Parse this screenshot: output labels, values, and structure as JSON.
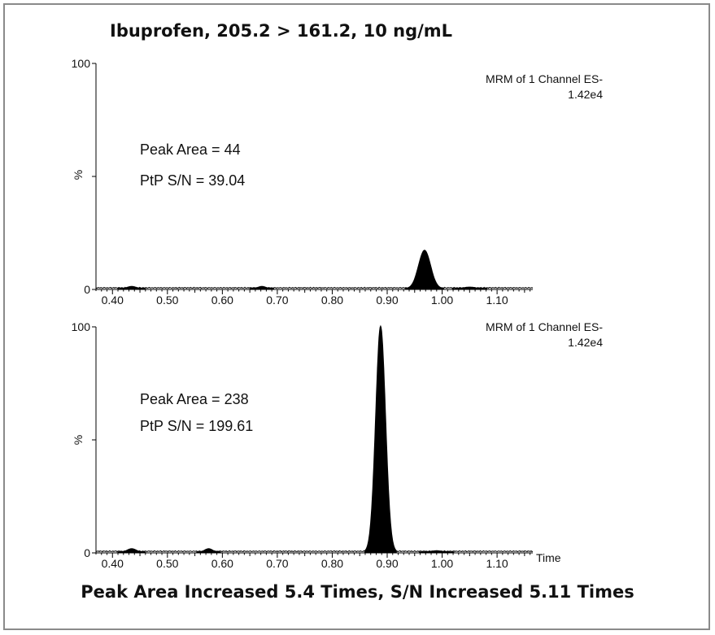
{
  "title": "Ibuprofen, 205.2 > 161.2, 10 ng/mL",
  "footer": "Peak Area Increased 5.4 Times, S/N Increased 5.11 Times",
  "colors": {
    "trace": "#000000",
    "frame": "#8a8a8a",
    "background": "#ffffff"
  },
  "chart_data": [
    {
      "type": "line",
      "title": "Ibuprofen, 205.2 > 161.2, 10 ng/mL",
      "xlabel": "",
      "ylabel": "%",
      "xlim": [
        0.37,
        1.165
      ],
      "ylim": [
        0,
        100
      ],
      "x_ticks": [
        "0.40",
        "0.50",
        "0.60",
        "0.70",
        "0.80",
        "0.90",
        "1.00",
        "1.10"
      ],
      "y_ticks": [
        "0",
        "100"
      ],
      "channel": "MRM of 1 Channel ES-",
      "intensity": "1.42e4",
      "annotations": [
        "Peak Area = 44",
        "PtP S/N = 39.04"
      ],
      "peaks": [
        {
          "rt": 0.968,
          "height": 17,
          "width": 0.011
        },
        {
          "rt": 0.435,
          "height": 1,
          "width": 0.008
        },
        {
          "rt": 0.672,
          "height": 1,
          "width": 0.007
        },
        {
          "rt": 1.05,
          "height": 0.7,
          "width": 0.01
        }
      ],
      "grid": false,
      "legend": "none"
    },
    {
      "type": "line",
      "title": "",
      "xlabel": "Time",
      "ylabel": "%",
      "xlim": [
        0.37,
        1.165
      ],
      "ylim": [
        0,
        100
      ],
      "x_ticks": [
        "0.40",
        "0.50",
        "0.60",
        "0.70",
        "0.80",
        "0.90",
        "1.00",
        "1.10"
      ],
      "y_ticks": [
        "0",
        "100"
      ],
      "channel": "MRM of 1 Channel ES-",
      "intensity": "1.42e4",
      "annotations": [
        "Peak Area = 238",
        "PtP S/N = 199.61"
      ],
      "peaks": [
        {
          "rt": 0.888,
          "height": 100,
          "width": 0.009
        },
        {
          "rt": 0.435,
          "height": 1.5,
          "width": 0.008
        },
        {
          "rt": 0.575,
          "height": 1.5,
          "width": 0.007
        },
        {
          "rt": 0.99,
          "height": 0.6,
          "width": 0.01
        }
      ],
      "grid": false,
      "legend": "none"
    }
  ]
}
